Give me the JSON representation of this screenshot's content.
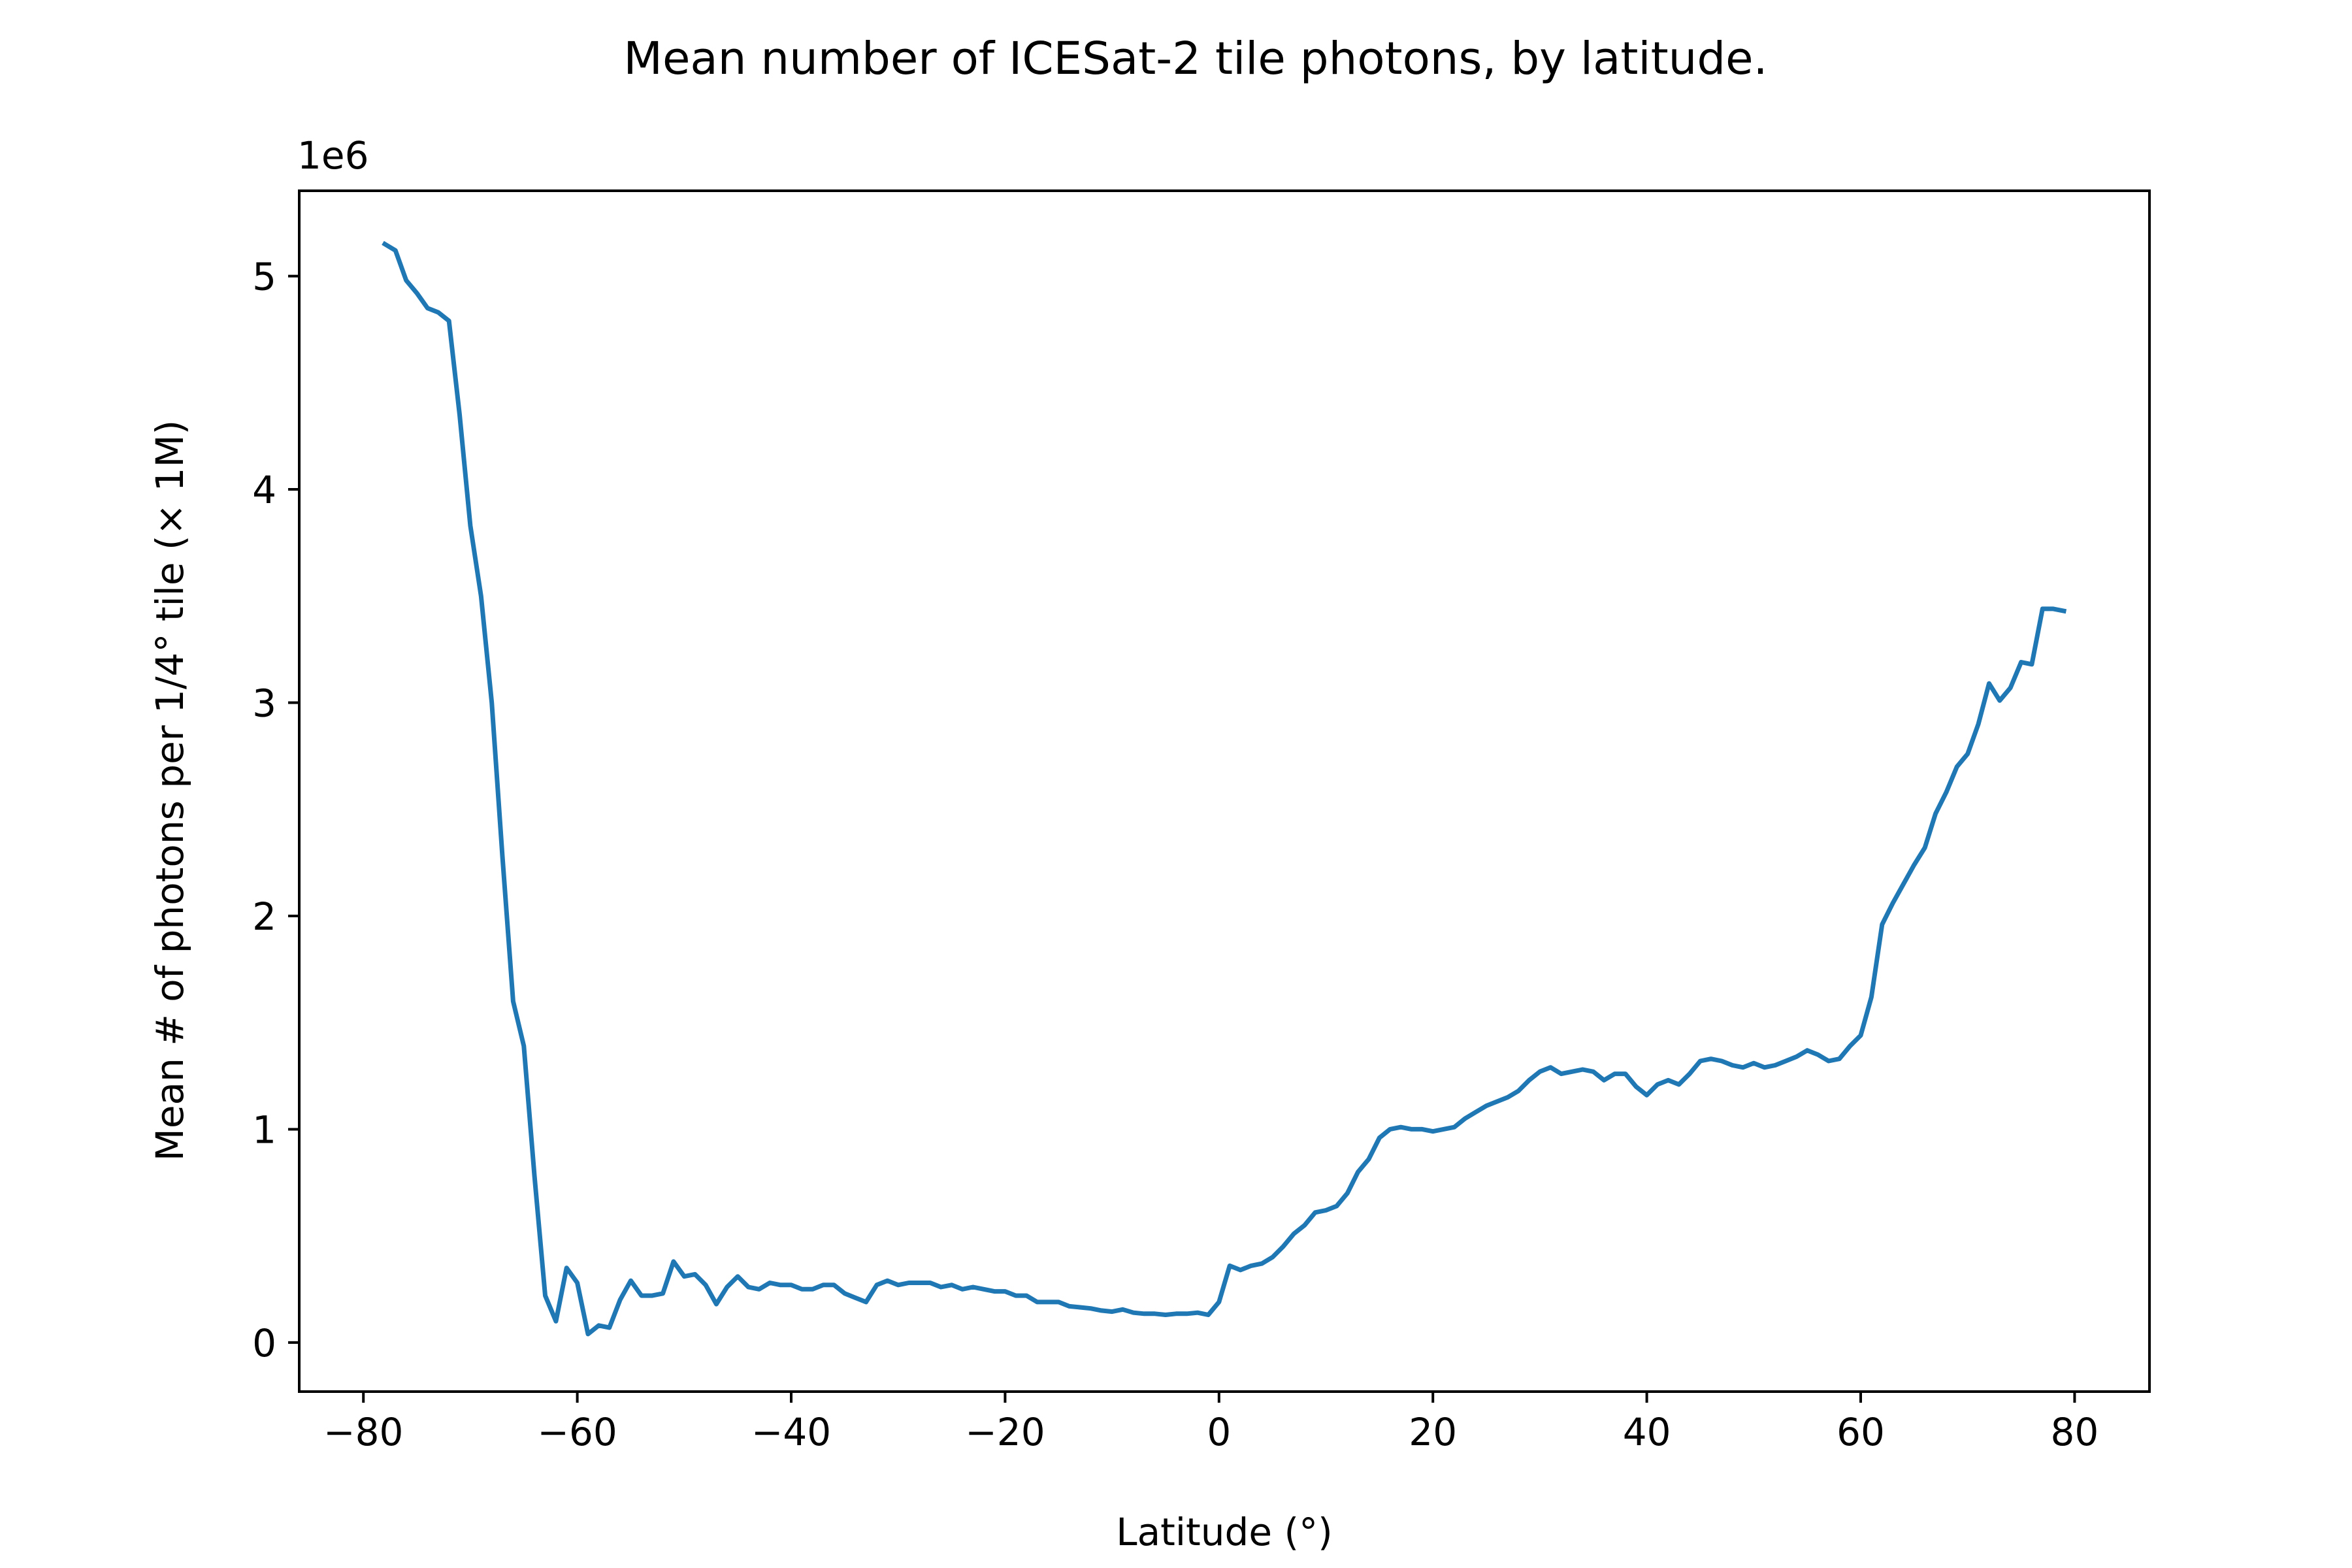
{
  "chart_data": {
    "type": "line",
    "title": "Mean number of ICESat-2 tile photons, by latitude.",
    "xlabel": "Latitude ($^\\circ$)",
    "xlabel_display": "Latitude (°)",
    "ylabel": "Mean # of photons per 1/4° tile (× 1M)",
    "y_offset_label": "1e6",
    "xlim": [
      -86,
      87
    ],
    "ylim": [
      -230000,
      5400000
    ],
    "xticks": [
      -80,
      -60,
      -40,
      -20,
      0,
      20,
      40,
      60,
      80
    ],
    "xtick_labels": [
      "−80",
      "−60",
      "−40",
      "−20",
      "0",
      "20",
      "40",
      "60",
      "80"
    ],
    "yticks": [
      0,
      1000000,
      2000000,
      3000000,
      4000000,
      5000000
    ],
    "ytick_labels": [
      "0",
      "1",
      "2",
      "3",
      "4",
      "5"
    ],
    "grid": false,
    "legend": "none",
    "series": [
      {
        "color": "#1f77b4",
        "x": [
          -78,
          -77,
          -76,
          -75,
          -74,
          -73,
          -72,
          -71,
          -70,
          -69,
          -68,
          -67,
          -66,
          -65,
          -64,
          -63,
          -62,
          -61,
          -60,
          -59,
          -58,
          -57,
          -56,
          -55,
          -54,
          -53,
          -52,
          -51,
          -50,
          -49,
          -48,
          -47,
          -46,
          -45,
          -44,
          -43,
          -42,
          -41,
          -40,
          -39,
          -38,
          -37,
          -36,
          -35,
          -34,
          -33,
          -32,
          -31,
          -30,
          -29,
          -28,
          -27,
          -26,
          -25,
          -24,
          -23,
          -22,
          -21,
          -20,
          -19,
          -18,
          -17,
          -16,
          -15,
          -14,
          -13,
          -12,
          -11,
          -10,
          -9,
          -8,
          -7,
          -6,
          -5,
          -4,
          -3,
          -2,
          -1,
          0,
          1,
          2,
          3,
          4,
          5,
          6,
          7,
          8,
          9,
          10,
          11,
          12,
          13,
          14,
          15,
          16,
          17,
          18,
          19,
          20,
          21,
          22,
          23,
          24,
          25,
          26,
          27,
          28,
          29,
          30,
          31,
          32,
          33,
          34,
          35,
          36,
          37,
          38,
          39,
          40,
          41,
          42,
          43,
          44,
          45,
          46,
          47,
          48,
          49,
          50,
          51,
          52,
          53,
          54,
          55,
          56,
          57,
          58,
          59,
          60,
          61,
          62,
          63,
          64,
          65,
          66,
          67,
          68,
          69,
          70,
          71,
          72,
          73,
          74,
          75,
          76,
          77,
          78,
          79
        ],
        "y": [
          5150000,
          5120000,
          4980000,
          4920000,
          4850000,
          4830000,
          4790000,
          4350000,
          3830000,
          3500000,
          3000000,
          2280000,
          1600000,
          1390000,
          780000,
          220000,
          100000,
          350000,
          280000,
          40000,
          80000,
          70000,
          200000,
          290000,
          220000,
          220000,
          230000,
          380000,
          310000,
          320000,
          270000,
          180000,
          260000,
          310000,
          260000,
          250000,
          280000,
          270000,
          270000,
          250000,
          250000,
          270000,
          270000,
          230000,
          210000,
          190000,
          270000,
          290000,
          270000,
          280000,
          280000,
          280000,
          260000,
          270000,
          250000,
          260000,
          250000,
          240000,
          240000,
          220000,
          220000,
          190000,
          190000,
          190000,
          170000,
          165000,
          160000,
          150000,
          145000,
          155000,
          140000,
          135000,
          135000,
          130000,
          135000,
          135000,
          140000,
          130000,
          190000,
          360000,
          340000,
          360000,
          370000,
          400000,
          450000,
          510000,
          550000,
          610000,
          620000,
          640000,
          700000,
          800000,
          860000,
          960000,
          1000000,
          1010000,
          1000000,
          1000000,
          990000,
          1000000,
          1010000,
          1050000,
          1080000,
          1110000,
          1130000,
          1150000,
          1180000,
          1230000,
          1270000,
          1290000,
          1260000,
          1270000,
          1280000,
          1270000,
          1230000,
          1260000,
          1260000,
          1200000,
          1160000,
          1210000,
          1230000,
          1210000,
          1260000,
          1320000,
          1330000,
          1320000,
          1300000,
          1290000,
          1310000,
          1290000,
          1300000,
          1320000,
          1340000,
          1370000,
          1350000,
          1320000,
          1330000,
          1390000,
          1440000,
          1620000,
          1960000,
          2060000,
          2150000,
          2240000,
          2320000,
          2480000,
          2580000,
          2700000,
          2760000,
          2900000,
          3090000,
          3010000,
          3070000,
          3190000,
          3180000,
          3440000,
          3440000,
          3430000
        ]
      }
    ]
  }
}
